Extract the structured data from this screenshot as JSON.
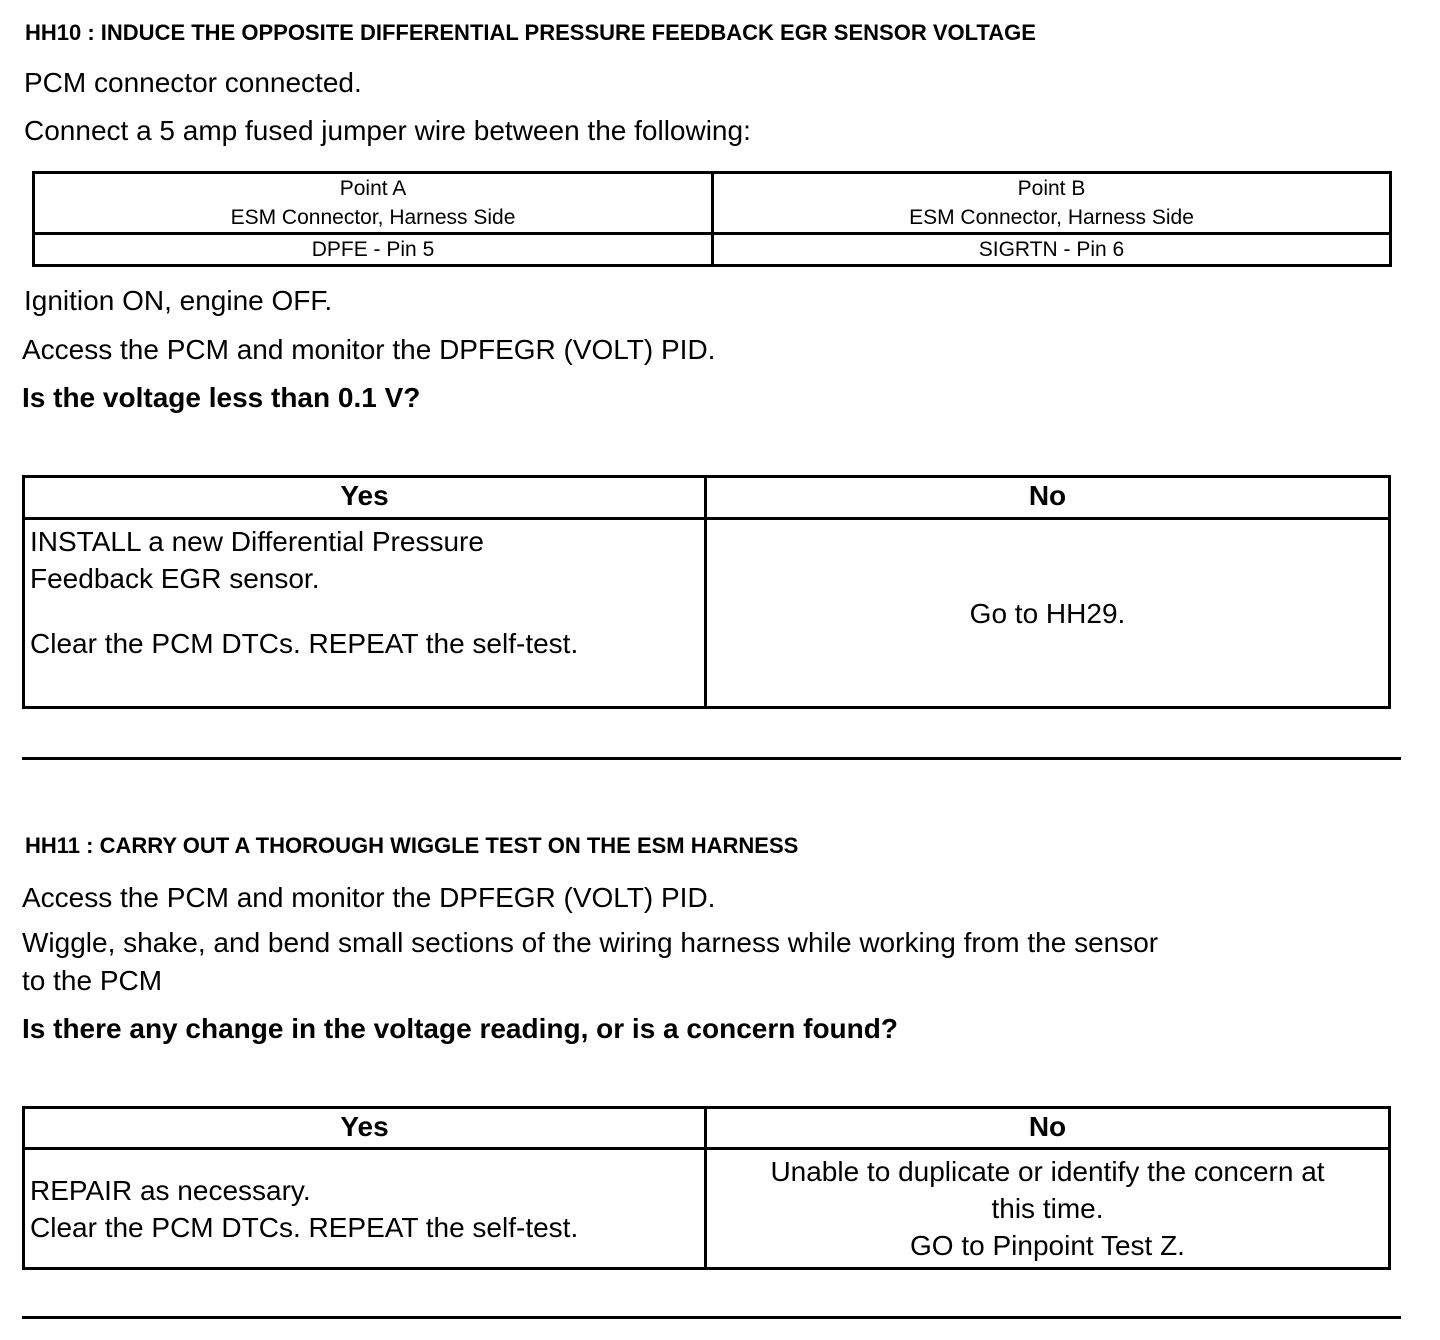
{
  "hh10": {
    "heading": "HH10 : INDUCE THE OPPOSITE DIFFERENTIAL PRESSURE FEEDBACK EGR SENSOR VOLTAGE",
    "step1": "PCM connector connected.",
    "step2": "Connect a 5 amp fused jumper wire between the following:",
    "jumper_table": {
      "headers": [
        {
          "line1": "Point A",
          "line2": "ESM Connector, Harness Side"
        },
        {
          "line1": "Point B",
          "line2": "ESM Connector, Harness Side"
        }
      ],
      "row": [
        "DPFE - Pin 5",
        "SIGRTN - Pin 6"
      ]
    },
    "step3": "Ignition ON, engine OFF.",
    "step4": "Access the PCM and monitor the  DPFEGR (VOLT) PID.",
    "question": "Is the voltage less than 0.1 V?",
    "result_table": {
      "yes_label": "Yes",
      "no_label": "No",
      "yes_line1": "INSTALL a new Differential Pressure",
      "yes_line2": "Feedback EGR sensor.",
      "yes_line3": "Clear the PCM DTCs. REPEAT the self-test.",
      "no_text": "Go to HH29."
    }
  },
  "hh11": {
    "heading": "HH11 : CARRY OUT A THOROUGH WIGGLE TEST ON THE ESM HARNESS",
    "step1": "Access the PCM and monitor the  DPFEGR (VOLT) PID.",
    "step2_line1": "Wiggle, shake, and bend small sections of the wiring harness while working from the sensor",
    "step2_line2": "to the PCM",
    "question": "Is there any change in the voltage reading, or is a concern found?",
    "result_table": {
      "yes_label": "Yes",
      "no_label": "No",
      "yes_line1": "REPAIR as necessary.",
      "yes_line2": "Clear the PCM DTCs. REPEAT the self-test.",
      "no_line1": "Unable to duplicate or identify the concern at",
      "no_line2": "this time.",
      "no_line3": "GO to Pinpoint Test Z."
    }
  }
}
